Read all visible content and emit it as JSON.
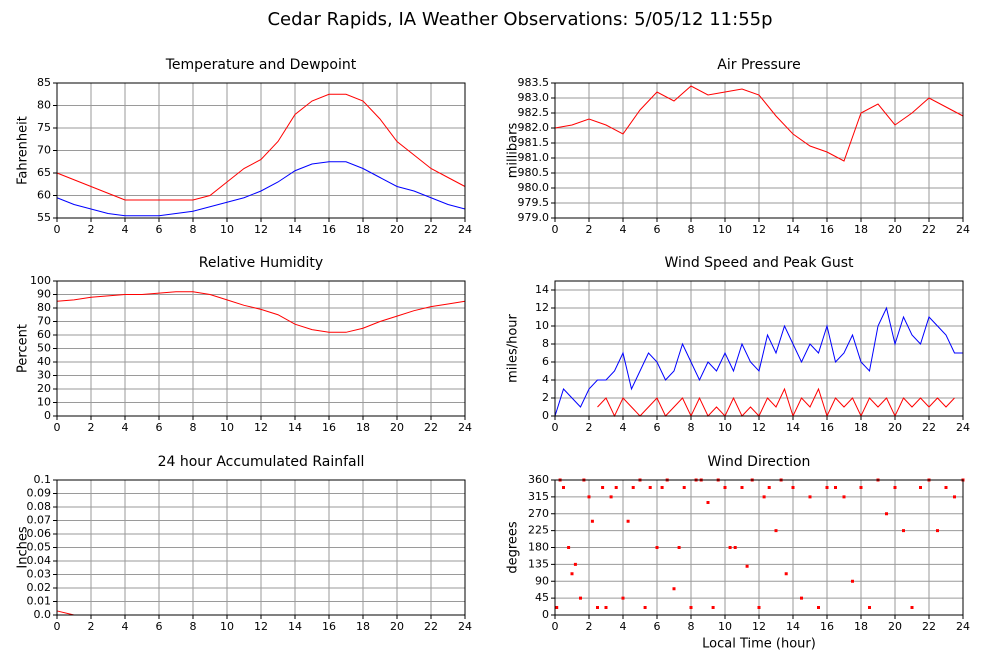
{
  "title": "Cedar Rapids, IA Weather Observations: 5/05/12 11:55p",
  "chart_data": [
    {
      "type": "line",
      "title": "Temperature and Dewpoint",
      "ylabel": "Fahrenheit",
      "grid": true,
      "xlim": [
        0,
        24
      ],
      "xticks": [
        0,
        2,
        4,
        6,
        8,
        10,
        12,
        14,
        16,
        18,
        20,
        22,
        24
      ],
      "ylim": [
        55,
        85
      ],
      "yticks": [
        55,
        60,
        65,
        70,
        75,
        80,
        85
      ],
      "x": [
        0,
        1,
        2,
        3,
        4,
        5,
        6,
        7,
        8,
        9,
        10,
        11,
        12,
        13,
        14,
        15,
        16,
        17,
        18,
        19,
        20,
        21,
        22,
        23,
        24
      ],
      "series": [
        {
          "color": "#ff0000",
          "values": [
            65,
            63.5,
            62,
            60.5,
            59,
            59,
            59,
            59,
            59,
            60,
            63,
            66,
            68,
            72,
            78,
            81,
            82.5,
            82.5,
            81,
            77,
            72,
            69,
            66,
            64,
            62
          ]
        },
        {
          "color": "#0000ff",
          "values": [
            59.5,
            58,
            57,
            56,
            55.5,
            55.5,
            55.5,
            56,
            56.5,
            57.5,
            58.5,
            59.5,
            61,
            63,
            65.5,
            67,
            67.5,
            67.5,
            66,
            64,
            62,
            61,
            59.5,
            58,
            57
          ]
        }
      ]
    },
    {
      "type": "line",
      "title": "Air Pressure",
      "ylabel": "millibars",
      "grid": true,
      "xlim": [
        0,
        24
      ],
      "xticks": [
        0,
        2,
        4,
        6,
        8,
        10,
        12,
        14,
        16,
        18,
        20,
        22,
        24
      ],
      "ylim": [
        979,
        983.5
      ],
      "yticks": [
        {
          "value": 979,
          "label": "979.0"
        },
        979.5,
        {
          "value": 980,
          "label": "980.0"
        },
        980.5,
        {
          "value": 981,
          "label": "981.0"
        },
        981.5,
        {
          "value": 982,
          "label": "982.0"
        },
        982.5,
        {
          "value": 983,
          "label": "983.0"
        },
        983.5
      ],
      "x": [
        0,
        1,
        2,
        3,
        4,
        5,
        6,
        7,
        8,
        9,
        10,
        11,
        12,
        13,
        14,
        15,
        16,
        17,
        18,
        19,
        20,
        21,
        22,
        23,
        24
      ],
      "series": [
        {
          "color": "#ff0000",
          "values": [
            982.0,
            982.1,
            982.3,
            982.1,
            981.8,
            982.6,
            983.2,
            982.9,
            983.4,
            983.1,
            983.2,
            983.3,
            983.1,
            982.4,
            981.8,
            981.4,
            981.2,
            980.9,
            982.5,
            982.8,
            982.1,
            982.5,
            983.0,
            982.7,
            982.4
          ]
        }
      ]
    },
    {
      "type": "line",
      "title": "Relative Humidity",
      "ylabel": "Percent",
      "grid": true,
      "xlim": [
        0,
        24
      ],
      "xticks": [
        0,
        2,
        4,
        6,
        8,
        10,
        12,
        14,
        16,
        18,
        20,
        22,
        24
      ],
      "ylim": [
        0,
        100
      ],
      "yticks": [
        0,
        10,
        20,
        30,
        40,
        50,
        60,
        70,
        80,
        90,
        100
      ],
      "x": [
        0,
        1,
        2,
        3,
        4,
        5,
        6,
        7,
        8,
        9,
        10,
        11,
        12,
        13,
        14,
        15,
        16,
        17,
        18,
        19,
        20,
        21,
        22,
        23,
        24
      ],
      "series": [
        {
          "color": "#ff0000",
          "values": [
            85,
            86,
            88,
            89,
            90,
            90,
            91,
            92,
            92,
            90,
            86,
            82,
            79,
            75,
            68,
            64,
            62,
            62,
            65,
            70,
            74,
            78,
            81,
            83,
            85
          ]
        }
      ]
    },
    {
      "type": "line",
      "title": "Wind Speed and Peak Gust",
      "ylabel": "miles/hour",
      "grid": true,
      "xlim": [
        0,
        24
      ],
      "xticks": [
        0,
        2,
        4,
        6,
        8,
        10,
        12,
        14,
        16,
        18,
        20,
        22,
        24
      ],
      "ylim": [
        0,
        15
      ],
      "yticks": [
        0,
        2,
        4,
        6,
        8,
        10,
        12,
        14
      ],
      "x": [
        0,
        0.5,
        1,
        1.5,
        2,
        2.5,
        3,
        3.5,
        4,
        4.5,
        5,
        5.5,
        6,
        6.5,
        7,
        7.5,
        8,
        8.5,
        9,
        9.5,
        10,
        10.5,
        11,
        11.5,
        12,
        12.5,
        13,
        13.5,
        14,
        14.5,
        15,
        15.5,
        16,
        16.5,
        17,
        17.5,
        18,
        18.5,
        19,
        19.5,
        20,
        20.5,
        21,
        21.5,
        22,
        22.5,
        23,
        23.5,
        24
      ],
      "series": [
        {
          "color": "#0000ff",
          "values": [
            0,
            3,
            2,
            1,
            3,
            4,
            4,
            5,
            7,
            3,
            5,
            7,
            6,
            4,
            5,
            8,
            6,
            4,
            6,
            5,
            7,
            5,
            8,
            6,
            5,
            9,
            7,
            10,
            8,
            6,
            8,
            7,
            10,
            6,
            7,
            9,
            6,
            5,
            10,
            12,
            8,
            11,
            9,
            8,
            11,
            10,
            9,
            7,
            7
          ]
        },
        {
          "color": "#ff0000",
          "values": [
            null,
            null,
            null,
            null,
            null,
            1,
            2,
            0,
            2,
            1,
            0,
            1,
            2,
            0,
            1,
            2,
            0,
            2,
            0,
            1,
            0,
            2,
            0,
            1,
            0,
            2,
            1,
            3,
            0,
            2,
            1,
            3,
            0,
            2,
            1,
            2,
            0,
            2,
            1,
            2,
            0,
            2,
            1,
            2,
            1,
            2,
            1,
            2,
            null
          ]
        }
      ]
    },
    {
      "type": "line",
      "title": "24 hour Accumulated Rainfall",
      "ylabel": "Inches",
      "grid": true,
      "xlim": [
        0,
        24
      ],
      "xticks": [
        0,
        2,
        4,
        6,
        8,
        10,
        12,
        14,
        16,
        18,
        20,
        22,
        24
      ],
      "ylim": [
        0,
        0.1
      ],
      "yticks": [
        {
          "value": 0,
          "label": "0.0"
        },
        0.01,
        0.02,
        0.03,
        0.04,
        0.05,
        0.06,
        0.07,
        0.08,
        0.09,
        0.1
      ],
      "x": [
        0,
        1,
        2,
        3,
        4,
        5,
        6,
        7,
        8,
        9,
        10,
        11,
        12,
        13,
        14,
        15,
        16,
        17,
        18,
        19,
        20,
        21,
        22,
        23,
        24
      ],
      "series": [
        {
          "color": "#ff0000",
          "values": [
            0.003,
            0,
            0,
            0,
            0,
            0,
            0,
            0,
            0,
            0,
            0,
            0,
            0,
            0,
            0,
            0,
            0,
            0,
            0,
            0,
            0,
            0,
            0,
            0,
            0
          ]
        }
      ]
    },
    {
      "type": "scatter",
      "title": "Wind Direction",
      "ylabel": "degrees",
      "xlabel": "Local Time (hour)",
      "grid": true,
      "xlim": [
        0,
        24
      ],
      "xticks": [
        0,
        2,
        4,
        6,
        8,
        10,
        12,
        14,
        16,
        18,
        20,
        22,
        24
      ],
      "ylim": [
        0,
        360
      ],
      "yticks": [
        0,
        45,
        90,
        135,
        180,
        225,
        270,
        315,
        360
      ],
      "x": [
        0.1,
        0.3,
        0.5,
        0.8,
        1.0,
        1.2,
        1.5,
        1.7,
        2.0,
        2.2,
        2.5,
        2.8,
        3.0,
        3.3,
        3.6,
        4.0,
        4.3,
        4.6,
        5.0,
        5.3,
        5.6,
        6.0,
        6.3,
        6.6,
        7.0,
        7.3,
        7.6,
        8.0,
        8.3,
        8.6,
        9.0,
        9.3,
        9.6,
        10.0,
        10.3,
        10.6,
        11.0,
        11.3,
        11.6,
        12.0,
        12.3,
        12.6,
        13.0,
        13.3,
        13.6,
        14.0,
        14.5,
        15.0,
        15.5,
        16.0,
        16.5,
        17.0,
        17.5,
        18.0,
        18.5,
        19.0,
        19.5,
        20.0,
        20.5,
        21.0,
        21.5,
        22.0,
        22.5,
        23.0,
        23.5,
        24.0
      ],
      "series": [
        {
          "color": "#ff0000",
          "values": [
            20,
            360,
            340,
            180,
            110,
            135,
            45,
            360,
            315,
            250,
            20,
            340,
            20,
            315,
            340,
            45,
            250,
            340,
            360,
            20,
            340,
            180,
            340,
            360,
            70,
            180,
            340,
            20,
            360,
            360,
            300,
            20,
            360,
            340,
            180,
            180,
            340,
            130,
            360,
            20,
            315,
            340,
            225,
            360,
            110,
            340,
            45,
            315,
            20,
            340,
            340,
            315,
            90,
            340,
            20,
            360,
            270,
            340,
            225,
            20,
            340,
            360,
            225,
            340,
            315,
            360
          ]
        }
      ]
    }
  ]
}
